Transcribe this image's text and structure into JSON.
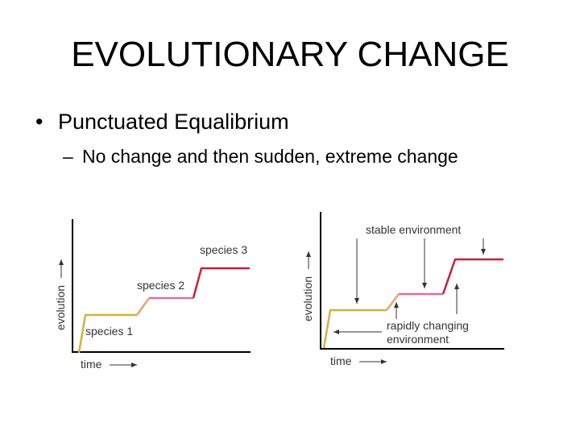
{
  "slide": {
    "title": "EVOLUTIONARY CHANGE",
    "bullet": {
      "marker": "•",
      "text": "Punctuated Equalibrium"
    },
    "sub_bullet": {
      "marker": "–",
      "text": "No change and then sudden, extreme change"
    }
  },
  "diagrams": [
    {
      "y_label": "evolution",
      "x_label": "time",
      "labels": [
        "species 1",
        "species 2",
        "species 3"
      ]
    },
    {
      "y_label": "evolution",
      "x_label": "time",
      "labels": [
        "stable environment",
        "rapidly changing",
        "environment"
      ]
    }
  ]
}
